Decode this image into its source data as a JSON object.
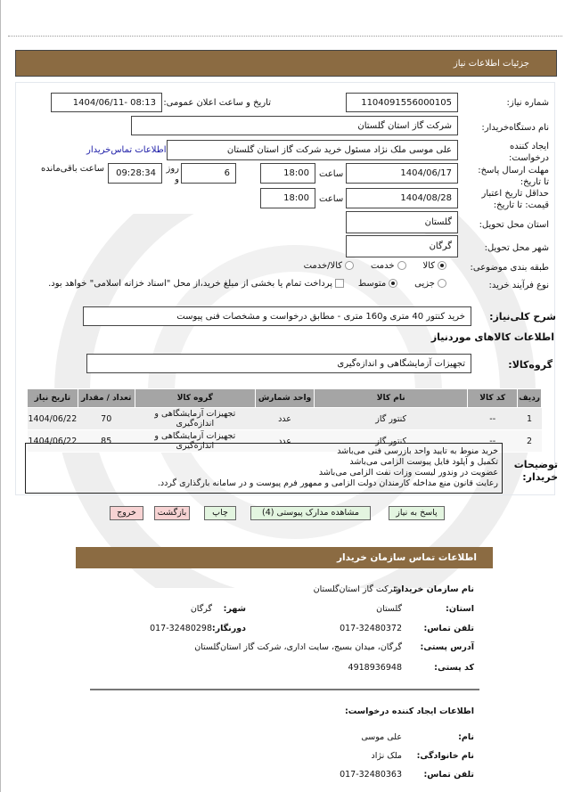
{
  "header": {
    "title": "جزئیات اطلاعات نیاز"
  },
  "form": {
    "need_number_label": "شماره نیاز:",
    "need_number": "1104091556000105",
    "announce_label": "تاریخ و ساعت اعلان عمومی:",
    "announce_value": "1404/06/11- 08:13",
    "buyer_label": "نام دستگاه‌خریدار:",
    "buyer_value": "شرکت گاز استان  گلستان",
    "creator_label": "ایجاد کننده درخواست:",
    "creator_value": "علی موسی ملک نژاد مسئول خرید شرکت گاز استان  گلستان",
    "contact_link": "اطلاعات تماس‌خریدار",
    "deadline_label": "مهلت ارسال پاسخ: تا تاریخ:",
    "deadline_date": "1404/06/17",
    "time_label": "ساعت",
    "deadline_time": "18:00",
    "days_value": "6",
    "days_label": "روز و",
    "remaining_time": "09:28:34",
    "remaining_label": "ساعت باقی‌مانده",
    "validity_label": "حداقل تاریخ اعتبار قیمت: تا تاریخ:",
    "validity_date": "1404/08/28",
    "validity_time": "18:00",
    "province_label": "استان محل تحویل:",
    "province_value": "گلستان",
    "city_label": "شهر محل تحویل:",
    "city_value": "گرگان",
    "category_label": "طبقه بندی موضوعی:",
    "category_options": [
      {
        "label": "کالا",
        "selected": true
      },
      {
        "label": "خدمت",
        "selected": false
      },
      {
        "label": "کالا/خدمت",
        "selected": false
      }
    ],
    "process_label": "نوع فرآیند خرید:",
    "process_options": [
      {
        "label": "جزیی",
        "selected": false
      },
      {
        "label": "متوسط",
        "selected": true
      }
    ],
    "payment_note": "پرداخت تمام یا بخشی از مبلغ خرید،از محل \"اسناد خزانه اسلامی\" خواهد بود.",
    "payment_checked": false
  },
  "summary": {
    "label": "شرح کلی‌نیاز:",
    "value": "خرید  کنتور 40 متری و160 متری - مطابق  درخواست و  مشخصات فنی پیوست"
  },
  "goods": {
    "title": "اطلاعات کالاهای موردنیاز",
    "group_label": "گروه‌کالا:",
    "group_value": "تجهیزات  آزمایشگاهی و اندازه‌گیری",
    "columns": [
      "ردیف",
      "کد کالا",
      "نام کالا",
      "واحد شمارش",
      "گروه کالا",
      "تعداد / مقدار",
      "تاریخ نیاز"
    ],
    "rows": [
      [
        "1",
        "--",
        "کنتور گاز",
        "عدد",
        "تجهیزات  آزمایشگاهی و اندازه‌گیری",
        "70",
        "1404/06/22"
      ],
      [
        "2",
        "--",
        "کنتور گاز",
        "عدد",
        "تجهیزات  آزمایشگاهی و اندازه‌گیری",
        "85",
        "1404/06/22"
      ]
    ]
  },
  "buyer_notes": {
    "label": "توضیحات خریدار:",
    "lines": [
      "خرید منوط به تایید واحد  بازرسی فنی می‌باشد",
      "تکمیل و آپلود فایل پیوست الزامی می‌باشد",
      " عضویت در وندور لیست وزات نفت  الزامی می‌باشد",
      "رعایت قانون منع مداخله کارمندان دولت الزامی و ممهور فرم پیوست و در سامانه  بارگذاری گردد."
    ]
  },
  "buttons": {
    "reply": "پاسخ به نیاز",
    "documents": "مشاهده مدارک پیوستی (4)",
    "print": "چاپ",
    "back": "بازگشت",
    "exit": "خروج"
  },
  "contact": {
    "title": "اطلاعات تماس سازمان خریدار",
    "org_label": "نام سازمان خریدار:",
    "org_value": "شرکت گاز استان‌گلستان",
    "province_label": "استان:",
    "province_value": "گلستان",
    "city_label": "شهر:",
    "city_value": "گرگان",
    "phone_label": "تلفن تماس:",
    "phone_value": "017-32480372",
    "fax_label": "دورنگار:",
    "fax_value": "017-32480298",
    "address_label": "آدرس پستی:",
    "address_value": "گرگان، میدان بسیج، سایت اداری،  شرکت گاز استان‌گلستان",
    "postal_label": "کد پستی:",
    "postal_value": "4918936948",
    "creator_title": "اطلاعات ایجاد کننده درخواست:",
    "name_label": "نام:",
    "name_value": "علی موسی",
    "family_label": "نام خانوادگی:",
    "family_value": "ملک نژاد",
    "cphone_label": "تلفن تماس:",
    "cphone_value": "017-32480363"
  },
  "colors": {
    "header_bg": "#8b6b42",
    "button_green": "#e3f5e0",
    "button_pink": "#f7d3d3",
    "link": "#1a1aa6"
  }
}
